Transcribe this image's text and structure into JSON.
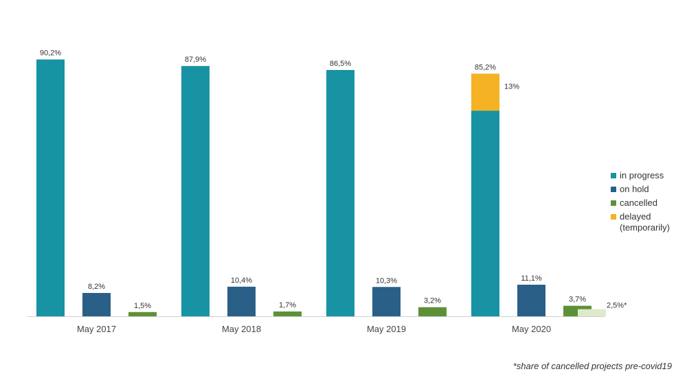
{
  "chart_data": {
    "type": "bar",
    "title": "",
    "xlabel": "",
    "ylabel": "",
    "ylim": [
      0,
      100
    ],
    "categories": [
      "May 2017",
      "May 2018",
      "May 2019",
      "May 2020"
    ],
    "series": [
      {
        "name": "in progress",
        "color": "#1793a3",
        "values": [
          90.2,
          87.9,
          86.5,
          85.2
        ],
        "labels": [
          "90,2%",
          "87,9%",
          "86,5%",
          "85,2%"
        ]
      },
      {
        "name": "on hold",
        "color": "#2a5f87",
        "values": [
          8.2,
          10.4,
          10.3,
          11.1
        ],
        "labels": [
          "8,2%",
          "10,4%",
          "10,3%",
          "11,1%"
        ]
      },
      {
        "name": "cancelled",
        "color": "#5e9137",
        "values": [
          1.5,
          1.7,
          3.2,
          3.7
        ],
        "labels": [
          "1,5%",
          "1,7%",
          "3,2%",
          "3,7%"
        ]
      },
      {
        "name": "delayed (temporarily)",
        "color": "#f5b224",
        "values": [
          null,
          null,
          null,
          13
        ],
        "labels": [
          "",
          "",
          "",
          "13%"
        ],
        "stacked_on": "in progress"
      }
    ],
    "extra_bar": {
      "category": "May 2020",
      "value": 2.5,
      "label": "2,5%*",
      "color": "#dfe9cc"
    },
    "legend": {
      "placement": "right",
      "items": [
        {
          "label": "in progress",
          "color": "#1793a3"
        },
        {
          "label": "on hold",
          "color": "#2a5f87"
        },
        {
          "label": "cancelled",
          "color": "#5e9137"
        },
        {
          "label": "delayed\n(temporarily)",
          "color": "#f5b224"
        }
      ]
    },
    "grid": false
  },
  "footnote": "*share of cancelled projects pre-covid19"
}
